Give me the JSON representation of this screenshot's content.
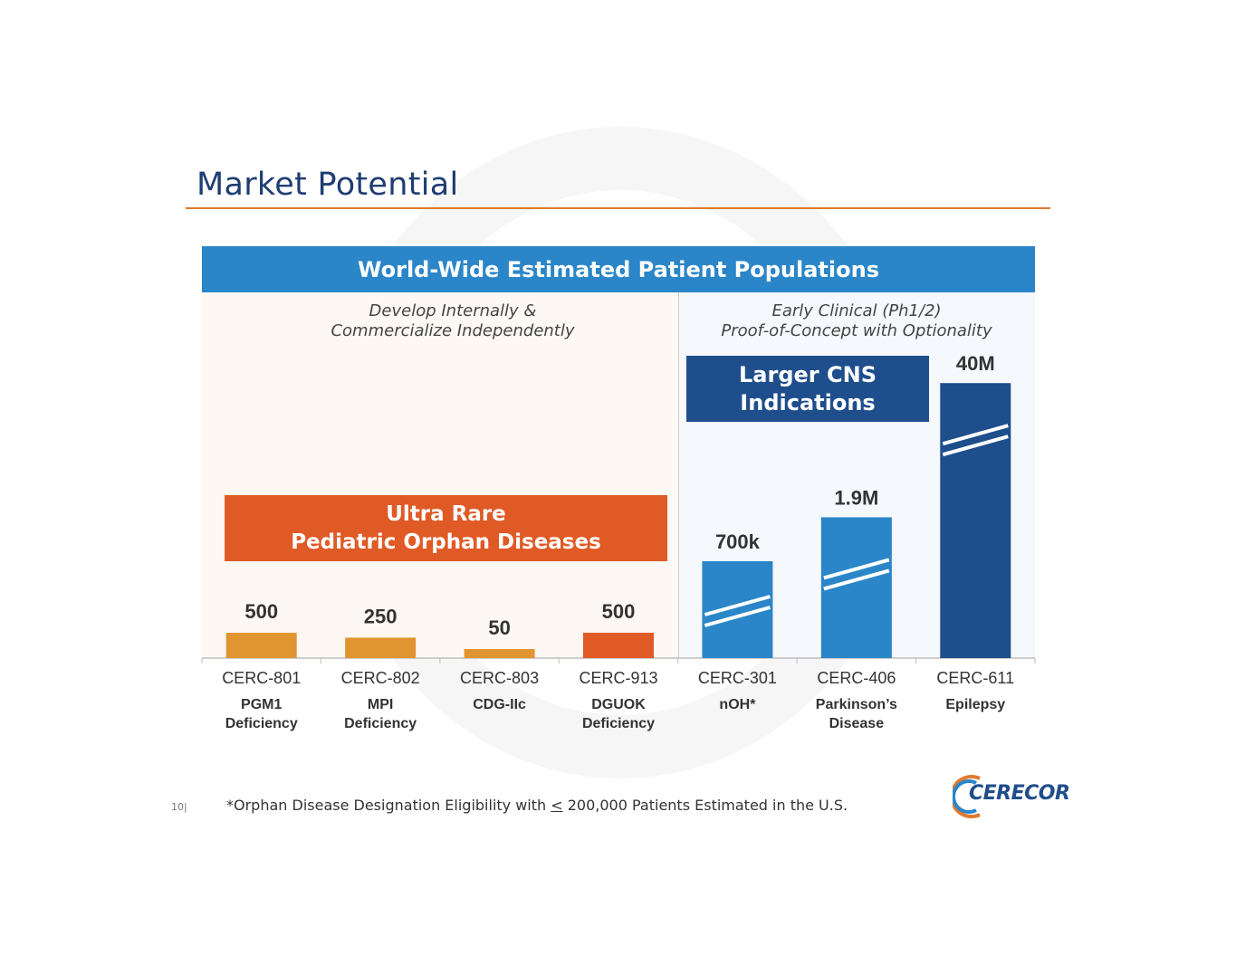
{
  "slide": {
    "title": "Market Potential",
    "page_number": "10|",
    "footnote_prefix": "*Orphan Disease Designation Eligibility with ",
    "footnote_symbol": "<",
    "footnote_suffix": " 200,000 Patients Estimated in the U.S.",
    "logo_text": "CERECOR"
  },
  "chart_data": {
    "type": "bar",
    "title": "World-Wide Estimated Patient Populations",
    "panels": [
      {
        "lines": [
          "Develop Internally &",
          "Commercialize Independently"
        ]
      },
      {
        "lines": [
          "Early Clinical (Ph1/2)",
          "Proof-of-Concept with Optionality"
        ]
      }
    ],
    "callouts": [
      {
        "lines": [
          "Ultra Rare",
          "Pediatric Orphan Diseases"
        ],
        "color": "#e05a26"
      },
      {
        "lines": [
          "Larger CNS",
          "Indications"
        ],
        "color": "#1f4e8c"
      }
    ],
    "categories": [
      "CERC-801",
      "CERC-802",
      "CERC-803",
      "CERC-913",
      "CERC-301",
      "CERC-406",
      "CERC-611"
    ],
    "subcategories": [
      [
        "PGM1",
        "Deficiency"
      ],
      [
        "MPI",
        "Deficiency"
      ],
      [
        "CDG-IIc"
      ],
      [
        "DGUOK",
        "Deficiency"
      ],
      [
        "nOH*"
      ],
      [
        "Parkinson’s",
        "Disease"
      ],
      [
        "Epilepsy"
      ]
    ],
    "values": [
      500,
      250,
      50,
      500,
      700000,
      1900000,
      40000000
    ],
    "value_labels": [
      "500",
      "250",
      "50",
      "500",
      "700k",
      "1.9M",
      "40M"
    ],
    "colors": [
      "#e09530",
      "#e09530",
      "#e09530",
      "#e05a26",
      "#2a86c8",
      "#2a86c8",
      "#1f4e8c"
    ],
    "axis_breaks": [
      false,
      false,
      false,
      false,
      true,
      true,
      true
    ],
    "y_scale": "broken (not to scale)"
  }
}
